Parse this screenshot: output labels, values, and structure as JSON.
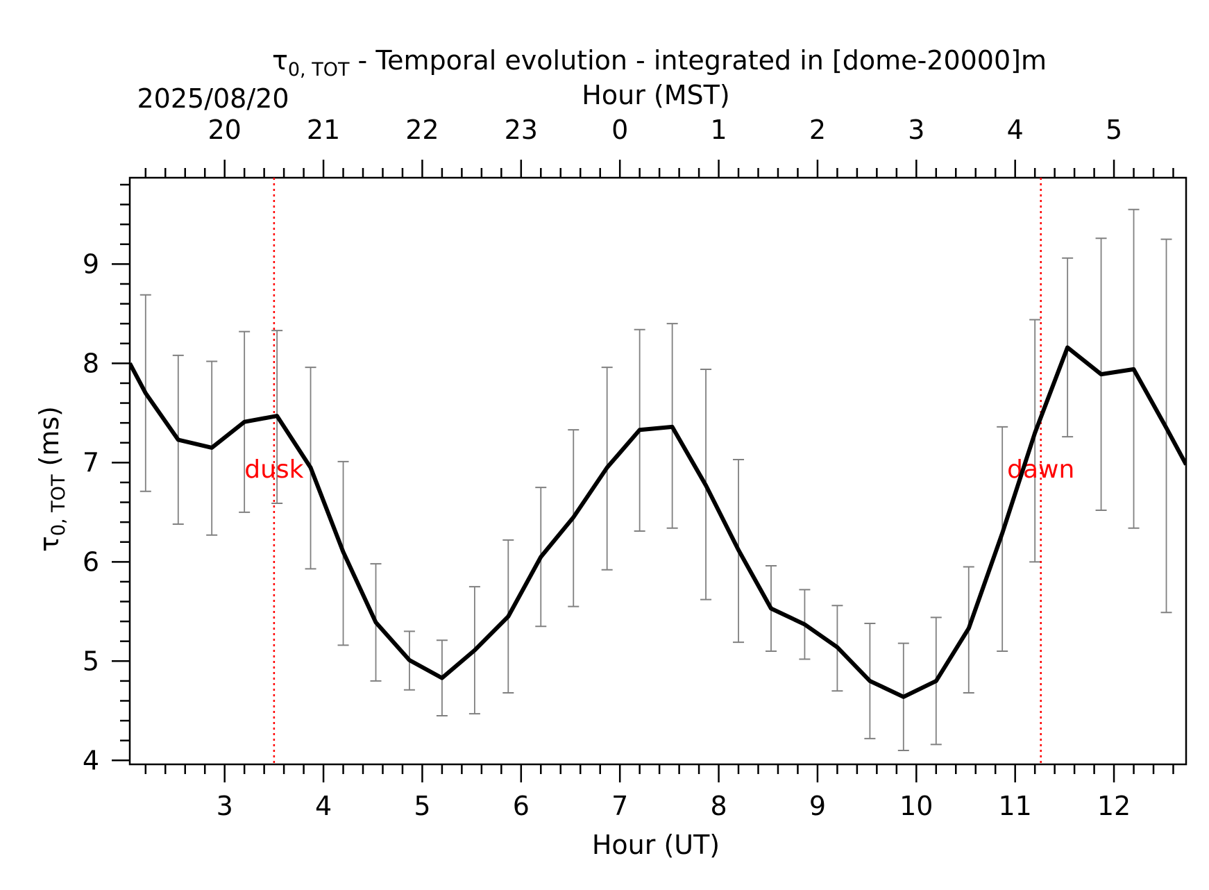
{
  "chart_data": {
    "type": "line",
    "title_symbol": "τ",
    "title_subscript": "0, TOT",
    "title_rest": " - Temporal evolution - integrated in [dome-20000]m",
    "date": "2025/08/20",
    "xlabel": "Hour (UT)",
    "xlabel_top": "Hour (MST)",
    "ylabel_symbol": "τ",
    "ylabel_subscript": "0, TOT",
    "ylabel_rest": " (ms)",
    "xlim": [
      2.04,
      12.73
    ],
    "ylim": [
      3.96,
      9.87
    ],
    "x_ticks": [
      3,
      4,
      5,
      6,
      7,
      8,
      9,
      10,
      11,
      12
    ],
    "y_ticks": [
      4,
      5,
      6,
      7,
      8,
      9
    ],
    "top_ticks": [
      {
        "ut": 3,
        "label": "20"
      },
      {
        "ut": 4,
        "label": "21"
      },
      {
        "ut": 5,
        "label": "22"
      },
      {
        "ut": 6,
        "label": "23"
      },
      {
        "ut": 7,
        "label": "0"
      },
      {
        "ut": 8,
        "label": "1"
      },
      {
        "ut": 9,
        "label": "2"
      },
      {
        "ut": 10,
        "label": "3"
      },
      {
        "ut": 11,
        "label": "4"
      },
      {
        "ut": 12,
        "label": "5"
      }
    ],
    "series": [
      {
        "color": "#000000",
        "x": [
          2.04,
          2.2,
          2.53,
          2.87,
          3.2,
          3.53,
          3.87,
          4.2,
          4.53,
          4.87,
          5.2,
          5.53,
          5.87,
          6.2,
          6.53,
          6.87,
          7.2,
          7.53,
          7.87,
          8.2,
          8.53,
          8.87,
          9.2,
          9.53,
          9.87,
          10.2,
          10.53,
          10.87,
          11.2,
          11.53,
          11.87,
          12.2,
          12.53,
          12.73
        ],
        "y": [
          8.0,
          7.7,
          7.23,
          7.15,
          7.41,
          7.47,
          6.95,
          6.1,
          5.39,
          5.01,
          4.83,
          5.11,
          5.45,
          6.05,
          6.45,
          6.95,
          7.33,
          7.36,
          6.77,
          6.12,
          5.53,
          5.37,
          5.14,
          4.8,
          4.64,
          4.8,
          5.33,
          6.29,
          7.3,
          8.16,
          7.89,
          7.94,
          7.35,
          6.98
        ]
      }
    ],
    "error_bars": {
      "color": "#808080",
      "x": [
        2.2,
        2.53,
        2.87,
        3.2,
        3.53,
        3.87,
        4.2,
        4.53,
        4.87,
        5.2,
        5.53,
        5.87,
        6.2,
        6.53,
        6.87,
        7.2,
        7.53,
        7.87,
        8.2,
        8.53,
        8.87,
        9.2,
        9.53,
        9.87,
        10.2,
        10.53,
        10.87,
        11.2,
        11.53,
        11.87,
        12.2,
        12.53
      ],
      "low": [
        6.71,
        6.38,
        6.27,
        6.5,
        6.59,
        5.93,
        5.16,
        4.8,
        4.71,
        4.45,
        4.47,
        4.68,
        5.35,
        5.55,
        5.92,
        6.31,
        6.34,
        5.62,
        5.19,
        5.1,
        5.02,
        4.7,
        4.22,
        4.1,
        4.16,
        4.68,
        5.1,
        6.0,
        7.26,
        6.52,
        6.34,
        5.49
      ],
      "high": [
        8.69,
        8.08,
        8.02,
        8.32,
        8.33,
        7.96,
        7.01,
        5.98,
        5.3,
        5.21,
        5.75,
        6.22,
        6.75,
        7.33,
        7.96,
        8.34,
        8.4,
        7.94,
        7.03,
        5.96,
        5.72,
        5.56,
        5.38,
        5.18,
        5.44,
        5.95,
        7.36,
        8.44,
        9.06,
        9.26,
        9.55,
        9.25
      ]
    },
    "events": [
      {
        "x": 3.5,
        "label": "dusk",
        "color": "#ff0000"
      },
      {
        "x": 11.26,
        "label": "dawn",
        "color": "#ff0000"
      }
    ],
    "grid": false
  }
}
